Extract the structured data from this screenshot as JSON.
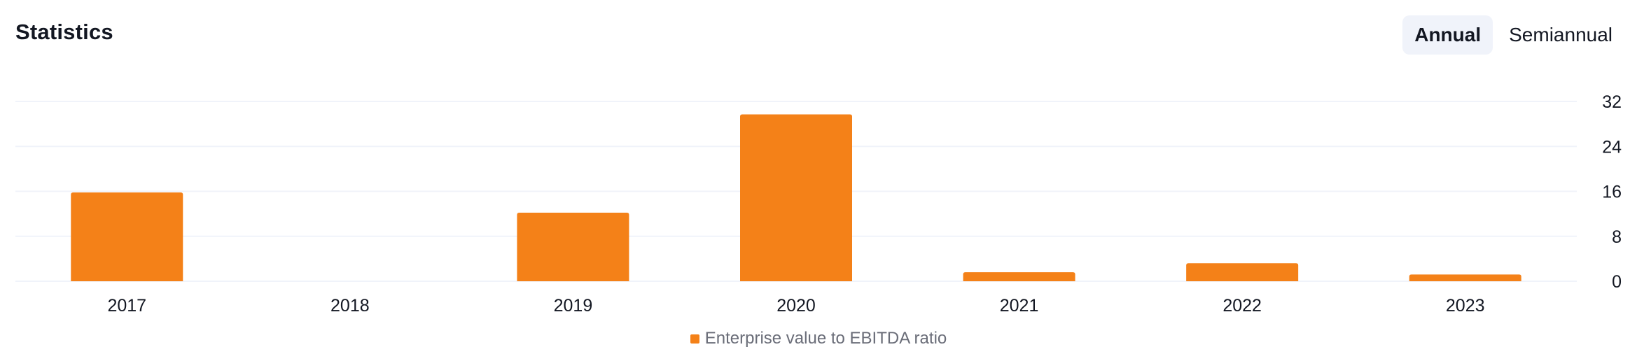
{
  "header": {
    "title": "Statistics"
  },
  "period_switch": {
    "options": [
      "Annual",
      "Semiannual"
    ],
    "selected": "Annual"
  },
  "colors": {
    "bar": "#f48118",
    "grid": "#f0f3fa",
    "axis_text": "#131722",
    "legend_text": "#6a6d78"
  },
  "chart_data": {
    "type": "bar",
    "categories": [
      "2017",
      "2018",
      "2019",
      "2020",
      "2021",
      "2022",
      "2023"
    ],
    "series": [
      {
        "name": "Enterprise value to EBITDA ratio",
        "values": [
          15.8,
          null,
          12.2,
          29.7,
          1.6,
          3.2,
          1.2
        ]
      }
    ],
    "ylim": [
      0,
      32
    ],
    "yticks": [
      0,
      8,
      16,
      24,
      32
    ],
    "y_axis_position": "right",
    "grid": true,
    "legend_position": "bottom-center"
  }
}
